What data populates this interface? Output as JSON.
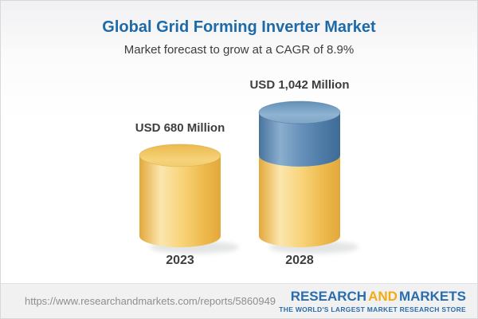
{
  "header": {
    "title": "Global Grid Forming Inverter Market",
    "subtitle": "Market forecast to grow at a CAGR of 8.9%"
  },
  "chart_data": {
    "type": "bar",
    "variant": "3d-cylinder",
    "title": "Global Grid Forming Inverter Market",
    "subtitle": "Market forecast to grow at a CAGR of 8.9%",
    "categories": [
      "2023",
      "2028"
    ],
    "values": [
      680,
      1042
    ],
    "value_labels": [
      "USD 680 Million",
      "USD 1,042 Million"
    ],
    "unit": "USD Million",
    "cagr_percent": 8.9,
    "legend": "none",
    "grid": "off",
    "colors": {
      "base_segment": "#F2C55F",
      "growth_segment": "#5E8BB3"
    },
    "bars": [
      {
        "category": "2023",
        "total": 680,
        "segments": [
          {
            "name": "base",
            "value": 680,
            "color": "#F2C55F"
          }
        ]
      },
      {
        "category": "2028",
        "total": 1042,
        "segments": [
          {
            "name": "base",
            "value": 680,
            "color": "#F2C55F"
          },
          {
            "name": "growth",
            "value": 362,
            "color": "#5E8BB3"
          }
        ]
      }
    ]
  },
  "footer": {
    "url": "https://www.researchandmarkets.com/reports/5860949",
    "logo": {
      "part1": "RESEARCH",
      "part2": "AND",
      "part3": "MARKETS",
      "tagline": "THE WORLD'S LARGEST MARKET RESEARCH STORE",
      "blue": "#2A6DAD",
      "gold": "#EFAC15"
    }
  }
}
